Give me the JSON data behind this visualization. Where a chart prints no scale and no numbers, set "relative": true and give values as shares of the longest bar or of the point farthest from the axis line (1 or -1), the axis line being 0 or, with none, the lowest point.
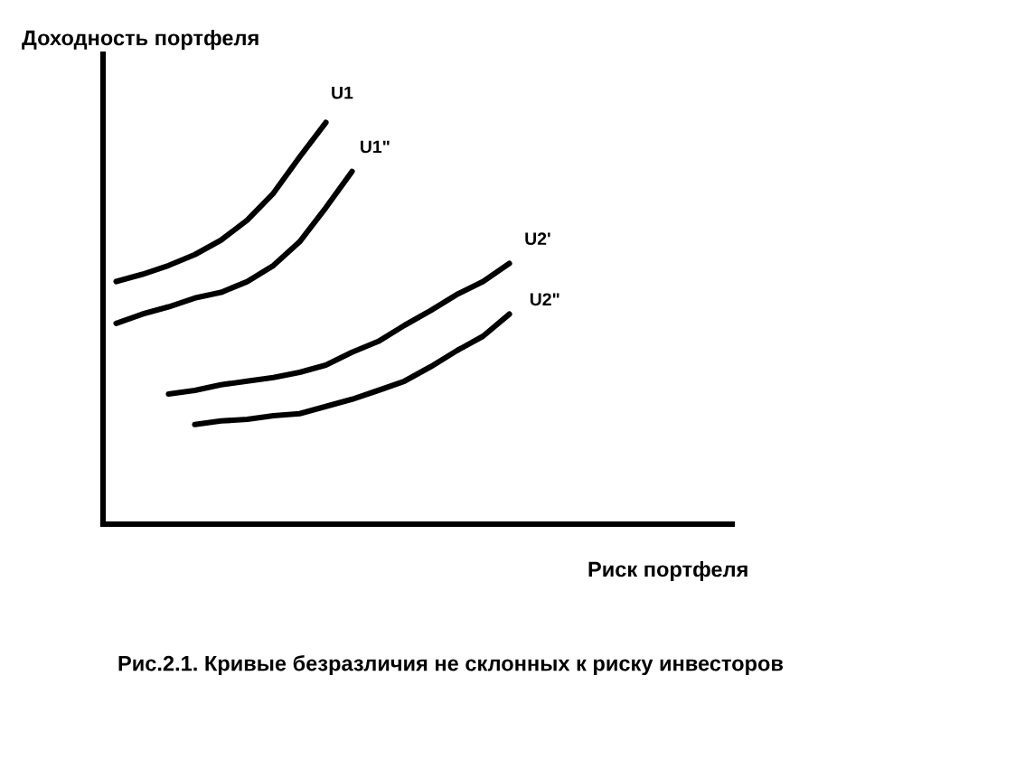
{
  "chart_data": {
    "type": "line",
    "relative": true,
    "ylabel": "Доходность портфеля",
    "xlabel": "Риск портфеля",
    "annotations": [
      "Рис.2.1. Кривые безразличия не склонных к риску инвесторов"
    ],
    "categories": [
      null,
      null,
      null,
      null,
      null,
      null,
      null,
      null,
      null,
      null,
      null,
      null,
      null,
      null,
      null,
      null,
      null,
      null,
      null,
      null,
      null,
      null,
      null,
      null
    ],
    "legend": false,
    "marker": "none",
    "line_style": "solid",
    "series": [
      {
        "name": "U1",
        "color": "#000000",
        "values": [
          0.604,
          0.622,
          0.644,
          0.671,
          0.707,
          0.757,
          0.824,
          0.914,
          1,
          null,
          null,
          null,
          null,
          null,
          null,
          null,
          null,
          null,
          null,
          null,
          null,
          null,
          null,
          null
        ]
      },
      {
        "name": "U1\"",
        "color": "#000000",
        "values": [
          0.5,
          0.523,
          0.541,
          0.563,
          0.577,
          0.604,
          0.644,
          0.703,
          0.788,
          0.878,
          null,
          null,
          null,
          null,
          null,
          null,
          null,
          null,
          null,
          null,
          null,
          null,
          null,
          null
        ]
      },
      {
        "name": "U2'",
        "color": "#000000",
        "values": [
          null,
          null,
          0.324,
          0.333,
          0.347,
          0.356,
          0.365,
          0.378,
          0.396,
          0.428,
          0.455,
          0.495,
          0.532,
          0.572,
          0.604,
          0.649,
          null,
          null,
          null,
          null,
          null,
          null,
          null,
          null
        ]
      },
      {
        "name": "U2\"",
        "color": "#000000",
        "values": [
          null,
          null,
          null,
          0.248,
          0.257,
          0.261,
          0.27,
          0.275,
          0.293,
          0.311,
          0.333,
          0.356,
          0.392,
          0.432,
          0.468,
          0.523,
          null,
          null,
          null,
          null,
          null,
          null,
          null,
          null
        ]
      }
    ]
  }
}
